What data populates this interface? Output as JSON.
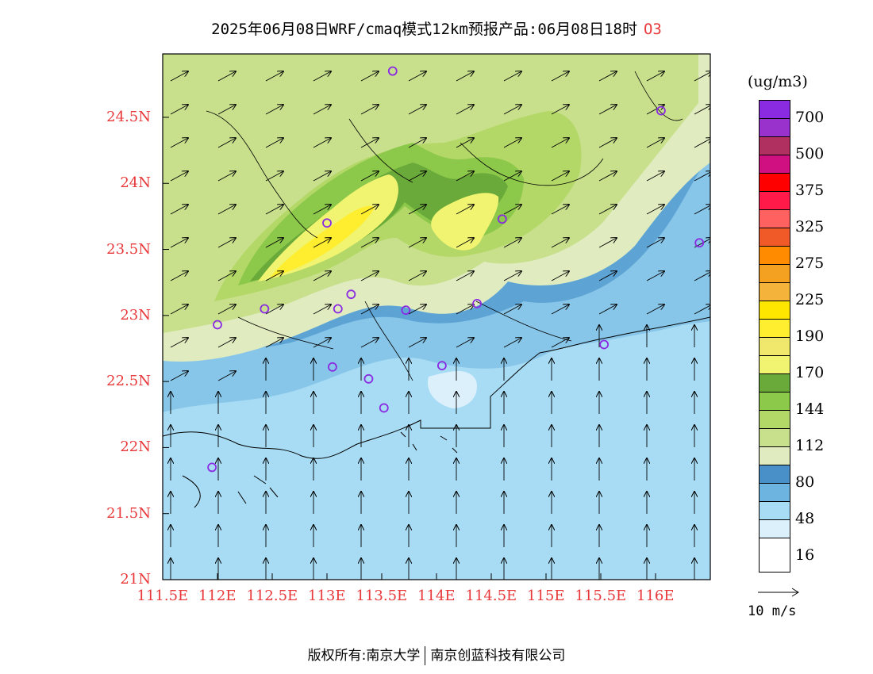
{
  "header": {
    "title": "2025年06月08日WRF/cmaq模式12km预报产品:06月08日18时",
    "species": "O3"
  },
  "axes": {
    "lat_labels": [
      {
        "text": "24.5N",
        "value": 24.5
      },
      {
        "text": "24N",
        "value": 24.0
      },
      {
        "text": "23.5N",
        "value": 23.5
      },
      {
        "text": "23N",
        "value": 23.0
      },
      {
        "text": "22.5N",
        "value": 22.5
      },
      {
        "text": "22N",
        "value": 22.0
      },
      {
        "text": "21.5N",
        "value": 21.5
      },
      {
        "text": "21N",
        "value": 21.0
      }
    ],
    "lon_labels": [
      {
        "text": "111.5E",
        "value": 111.5
      },
      {
        "text": "112E",
        "value": 112.0
      },
      {
        "text": "112.5E",
        "value": 112.5
      },
      {
        "text": "113E",
        "value": 113.0
      },
      {
        "text": "113.5E",
        "value": 113.5
      },
      {
        "text": "114E",
        "value": 114.0
      },
      {
        "text": "114.5E",
        "value": 114.5
      },
      {
        "text": "115E",
        "value": 115.0
      },
      {
        "text": "115.5E",
        "value": 115.5
      },
      {
        "text": "116E",
        "value": 116.0
      }
    ],
    "lat_range": [
      21.0,
      24.98
    ],
    "lon_range": [
      111.5,
      116.5
    ]
  },
  "legend": {
    "unit": "(ug/m3)",
    "colors": [
      "#8a2be2",
      "#9932cc",
      "#b03060",
      "#d01080",
      "#ff0000",
      "#ff1a4a",
      "#ff6060",
      "#f05a28",
      "#ff8c00",
      "#f4a020",
      "#f4b43c",
      "#ffe600",
      "#ffee30",
      "#f0e86c",
      "#f0f470",
      "#6aaa3a",
      "#8cc84a",
      "#b4d868",
      "#c8e08c",
      "#e0ecc0",
      "#4a90c8",
      "#6eb4e0",
      "#a8dcf4",
      "#dcf0fc",
      "#ffffff"
    ],
    "ticks": [
      "700",
      "500",
      "375",
      "325",
      "275",
      "225",
      "190",
      "170",
      "144",
      "112",
      "80",
      "48",
      "16"
    ]
  },
  "vector_ref": {
    "label": "10 m/s"
  },
  "footer": {
    "left": "版权所有:南京大学",
    "right": "南京创蓝科技有限公司"
  },
  "map_colors": {
    "sea": "#a8dcf4",
    "sea_light": "#dcf0fc",
    "coast_band": "#6eb4e0",
    "coast_dark": "#4a90c8",
    "land_low": "#e0ecc0",
    "land_mid": "#c8e08c",
    "land_mid2": "#b4d868",
    "land_high": "#8cc84a",
    "land_peak": "#6aaa3a",
    "hot1": "#f0f470",
    "hot2": "#ffee30",
    "hot3": "#f0e86c",
    "station": "#8a2be2"
  },
  "stations": [
    {
      "lon": 113.6,
      "lat": 24.85
    },
    {
      "lon": 116.05,
      "lat": 24.55
    },
    {
      "lon": 113.0,
      "lat": 23.7
    },
    {
      "lon": 114.6,
      "lat": 23.73
    },
    {
      "lon": 116.4,
      "lat": 23.55
    },
    {
      "lon": 112.43,
      "lat": 23.05
    },
    {
      "lon": 113.1,
      "lat": 23.05
    },
    {
      "lon": 113.22,
      "lat": 23.16
    },
    {
      "lon": 113.72,
      "lat": 23.04
    },
    {
      "lon": 114.37,
      "lat": 23.09
    },
    {
      "lon": 112.0,
      "lat": 22.93
    },
    {
      "lon": 115.53,
      "lat": 22.78
    },
    {
      "lon": 113.05,
      "lat": 22.61
    },
    {
      "lon": 113.38,
      "lat": 22.52
    },
    {
      "lon": 114.05,
      "lat": 22.62
    },
    {
      "lon": 113.52,
      "lat": 22.3
    },
    {
      "lon": 111.95,
      "lat": 21.85
    }
  ]
}
